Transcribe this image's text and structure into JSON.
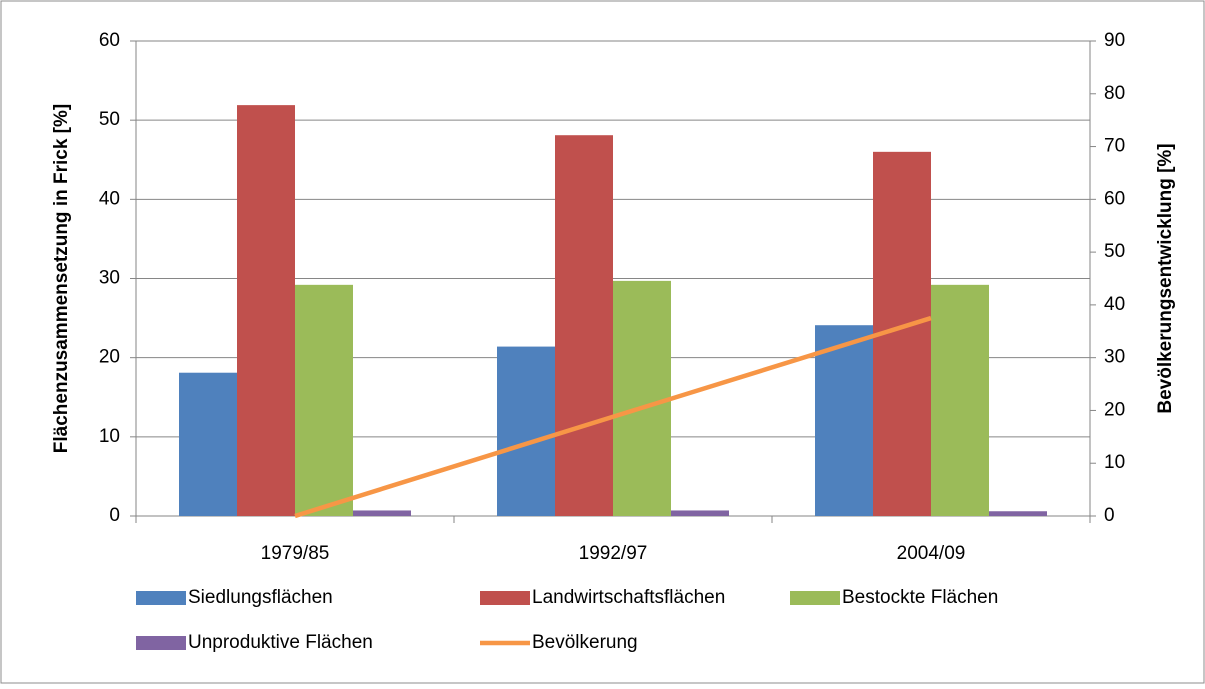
{
  "chart_data": {
    "type": "bar",
    "categories": [
      "1979/85",
      "1992/97",
      "2004/09"
    ],
    "series": [
      {
        "name": "Siedlungsflächen",
        "color": "#4f81bd",
        "values": [
          18.1,
          21.4,
          24.1
        ]
      },
      {
        "name": "Landwirtschaftsflächen",
        "color": "#c0504d",
        "values": [
          51.9,
          48.1,
          46.0
        ]
      },
      {
        "name": "Bestockte Flächen",
        "color": "#9bbb59",
        "values": [
          29.2,
          29.7,
          29.2
        ]
      },
      {
        "name": "Unproduktive Flächen",
        "color": "#8064a2",
        "values": [
          0.7,
          0.7,
          0.6
        ]
      },
      {
        "name": "Bevölkerung",
        "color": "#f79646",
        "type": "line",
        "axis": "y2",
        "values": [
          0,
          18.8,
          37.5
        ]
      }
    ],
    "ylabel": "Flächenzusammensetzung in Frick [%]",
    "y2label": "Bevölkerungsentwicklung [%]",
    "ylim": [
      0,
      60
    ],
    "yticks": [
      0,
      10,
      20,
      30,
      40,
      50,
      60
    ],
    "y2lim": [
      0,
      90
    ],
    "y2ticks": [
      0,
      10,
      20,
      30,
      40,
      50,
      60,
      70,
      80,
      90
    ],
    "grid": true,
    "legend": "bottom"
  }
}
